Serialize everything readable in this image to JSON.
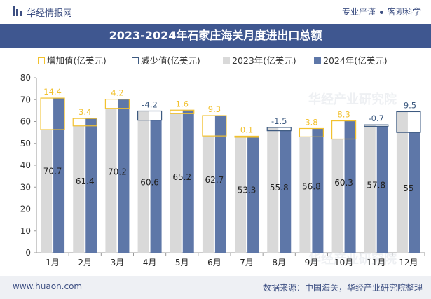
{
  "header": {
    "brand": "华经情报网",
    "slogan_left": "专业严谨",
    "slogan_right": "客观科学",
    "logo_icon": "bar-chart-icon"
  },
  "title": "2023-2024年石家庄海关月度进出口总额",
  "legend": {
    "increase": "增加值(亿美元)",
    "decrease": "减少值(亿美元)",
    "y2023": "2023年(亿美元)",
    "y2024": "2024年(亿美元)"
  },
  "watermark": "华经产业研究院",
  "footer": {
    "url": "www.huaon.com",
    "source": "数据来源：中国海关，华经产业研究院整理"
  },
  "colors": {
    "bar_2023": "#d9d9d9",
    "bar_2024": "#5e77a8",
    "increase": "#f2c12e",
    "decrease": "#3d5a80",
    "title_bg": "#3f5790"
  },
  "chart_data": {
    "type": "bar",
    "title": "2023-2024年石家庄海关月度进出口总额",
    "categories": [
      "1月",
      "2月",
      "3月",
      "4月",
      "5月",
      "6月",
      "7月",
      "8月",
      "9月",
      "10月",
      "11月",
      "12月"
    ],
    "series": [
      {
        "name": "2023年(亿美元)",
        "values": [
          56.3,
          58.0,
          66.0,
          64.8,
          63.6,
          53.4,
          53.2,
          57.3,
          53.0,
          52.0,
          58.5,
          64.5
        ]
      },
      {
        "name": "2024年(亿美元)",
        "values": [
          70.7,
          61.4,
          70.2,
          60.6,
          65.2,
          62.7,
          53.3,
          55.8,
          56.8,
          60.3,
          57.8,
          55
        ]
      }
    ],
    "change_labels": [
      "14.4",
      "3.4",
      "4.2",
      "-4.2",
      "1.6",
      "9.3",
      "0.1",
      "-1.5",
      "3.8",
      "8.3",
      "-0.7",
      "-9.5"
    ],
    "value_labels": [
      "70.7",
      "61.4",
      "70.2",
      "60.6",
      "65.2",
      "62.7",
      "53.3",
      "55.8",
      "56.8",
      "60.3",
      "57.8",
      "55"
    ],
    "yticks": [
      0,
      10,
      20,
      30,
      40,
      50,
      60,
      70,
      80
    ],
    "ylim": [
      0,
      80
    ],
    "xlabel": "",
    "ylabel": ""
  }
}
